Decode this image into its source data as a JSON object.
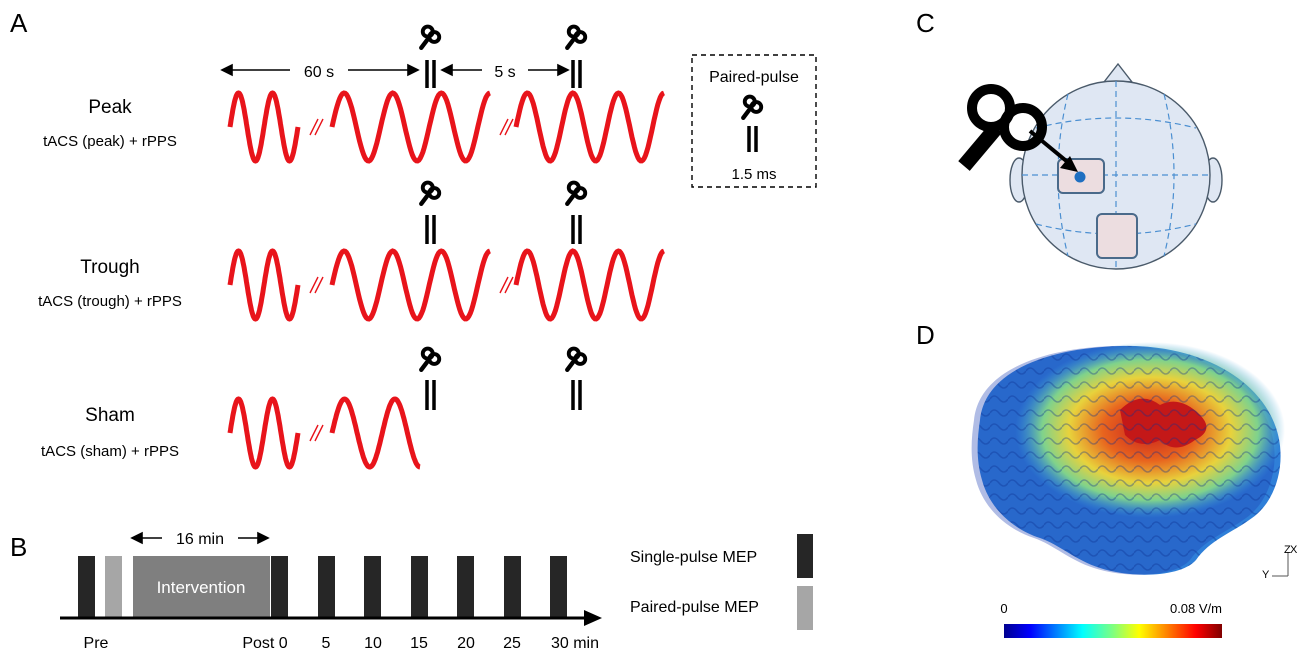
{
  "panelA": {
    "letter": "A",
    "interval_long": "60 s",
    "interval_short": "5 s",
    "conditions": [
      {
        "name": "Peak",
        "desc": "tACS (peak) + rPPS"
      },
      {
        "name": "Trough",
        "desc": "tACS (trough) + rPPS"
      },
      {
        "name": "Sham",
        "desc": "tACS (sham) + rPPS"
      }
    ],
    "inset": {
      "title": "Paired-pulse",
      "isi": "1.5 ms"
    },
    "wave_color": "#e8141b"
  },
  "panelB": {
    "letter": "B",
    "duration": "16 min",
    "intervention": "Intervention",
    "time_labels": [
      "Pre",
      "Post 0",
      "5",
      "10",
      "15",
      "20",
      "25",
      "30 min"
    ],
    "legend": [
      {
        "label": "Single-pulse MEP",
        "color": "#262626"
      },
      {
        "label": "Paired-pulse MEP",
        "color": "#a6a6a6"
      }
    ],
    "intervention_color": "#7f7f7f"
  },
  "panelC": {
    "letter": "C",
    "head_fill": "#dfe7f3",
    "target_color": "#1f6fc1"
  },
  "panelD": {
    "letter": "D",
    "colorbar_min": "0",
    "colorbar_max": "0.08 V/m",
    "axis_y": "Y",
    "axis_z": "Z",
    "axis_x": "X"
  }
}
